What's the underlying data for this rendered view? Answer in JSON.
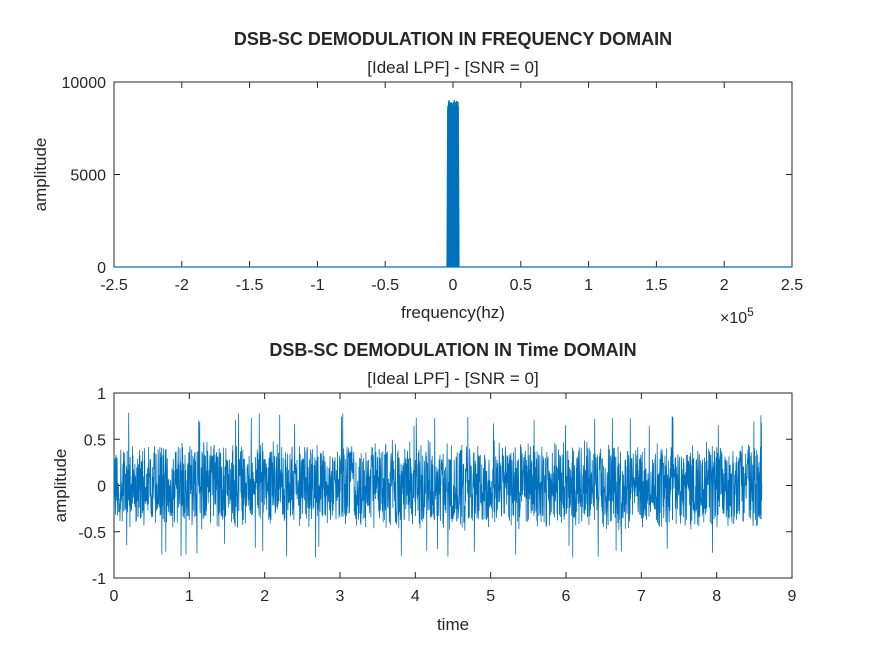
{
  "chart_data": [
    {
      "type": "line",
      "title": "DSB-SC DEMODULATION IN FREQUENCY DOMAIN",
      "subtitle": "[Ideal LPF] - [SNR = 0]",
      "xlabel": "frequency(hz)",
      "ylabel": "amplitude",
      "xlim": [
        -250000,
        250000
      ],
      "ylim": [
        0,
        10000
      ],
      "x_ticks": [
        "-2.5",
        "-2",
        "-1.5",
        "-1",
        "-0.5",
        "0",
        "0.5",
        "1",
        "1.5",
        "2",
        "2.5"
      ],
      "y_ticks": [
        "0",
        "5000",
        "10000"
      ],
      "x_exponent_base": "×10",
      "x_exponent_power": "5",
      "series_color": "#0072BD",
      "grid": false,
      "series": [
        {
          "description": "narrow baseband spectrum centred at 0 Hz, near-zero elsewhere",
          "x": [
            -250000,
            -5000,
            -4500,
            -4000,
            -3000,
            -2000,
            -1000,
            0,
            1000,
            2000,
            3000,
            4000,
            4500,
            5000,
            250000
          ],
          "y": [
            0,
            0,
            500,
            8800,
            9100,
            8900,
            9000,
            8800,
            9100,
            8950,
            9050,
            8900,
            500,
            0,
            0
          ]
        }
      ]
    },
    {
      "type": "line",
      "title": "DSB-SC DEMODULATION IN Time DOMAIN",
      "subtitle": "[Ideal LPF] - [SNR = 0]",
      "xlabel": "time",
      "ylabel": "amplitude",
      "xlim": [
        0,
        9
      ],
      "ylim": [
        -1,
        1
      ],
      "x_ticks": [
        "0",
        "1",
        "2",
        "3",
        "4",
        "5",
        "6",
        "7",
        "8",
        "9"
      ],
      "y_ticks": [
        "-1",
        "-0.5",
        "0",
        "0.5",
        "1"
      ],
      "series_color": "#0072BD",
      "grid": false,
      "series": [
        {
          "description": "dense noisy signal spanning t = 0 to about 8.6, mostly within ±0.5, peaks near ±0.8",
          "t_start": 0,
          "t_end": 8.6,
          "band_low": -0.5,
          "band_high": 0.5,
          "peak_low": -0.78,
          "peak_high": 0.8
        }
      ]
    }
  ]
}
